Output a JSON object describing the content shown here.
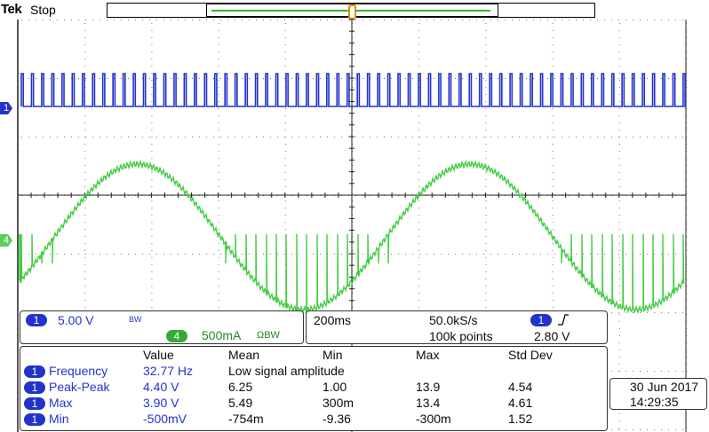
{
  "header": {
    "brand": "Tek",
    "status": "Stop"
  },
  "channels": {
    "ch1": {
      "marker": "1",
      "color": "#2233cc"
    },
    "ch4": {
      "marker": "4",
      "color": "#44cc44"
    }
  },
  "settings": {
    "ch1_badge": "1",
    "ch1_scale": "5.00 V",
    "ch1_bw": "BW",
    "ch4_badge": "4",
    "ch4_scale": "500mA",
    "ch4_suffix": "ΩBW"
  },
  "timebase": {
    "time_per_div": "200ms",
    "sample_rate": "50.0kS/s",
    "record_length": "100k points",
    "trigger_badge": "1",
    "trigger_slope": "rising-edge-icon",
    "trigger_level": "2.80 V"
  },
  "measurements": {
    "headers": [
      "Value",
      "Mean",
      "Min",
      "Max",
      "Std Dev"
    ],
    "rows": [
      {
        "ch": "1",
        "name": "Frequency",
        "value": "32.77 Hz",
        "mean": "Low signal amplitude",
        "min": "",
        "max": "",
        "std": ""
      },
      {
        "ch": "1",
        "name": "Peak-Peak",
        "value": "4.40 V",
        "mean": "6.25",
        "min": "1.00",
        "max": "13.9",
        "std": "4.54"
      },
      {
        "ch": "1",
        "name": "Max",
        "value": "3.90 V",
        "mean": "5.49",
        "min": "300m",
        "max": "13.4",
        "std": "4.61"
      },
      {
        "ch": "1",
        "name": "Min",
        "value": "-500mV",
        "mean": "-754m",
        "min": "-9.36",
        "max": "-300m",
        "std": "1.52"
      }
    ]
  },
  "datetime": {
    "date": "30 Jun  2017",
    "time": "14:29:35"
  }
}
